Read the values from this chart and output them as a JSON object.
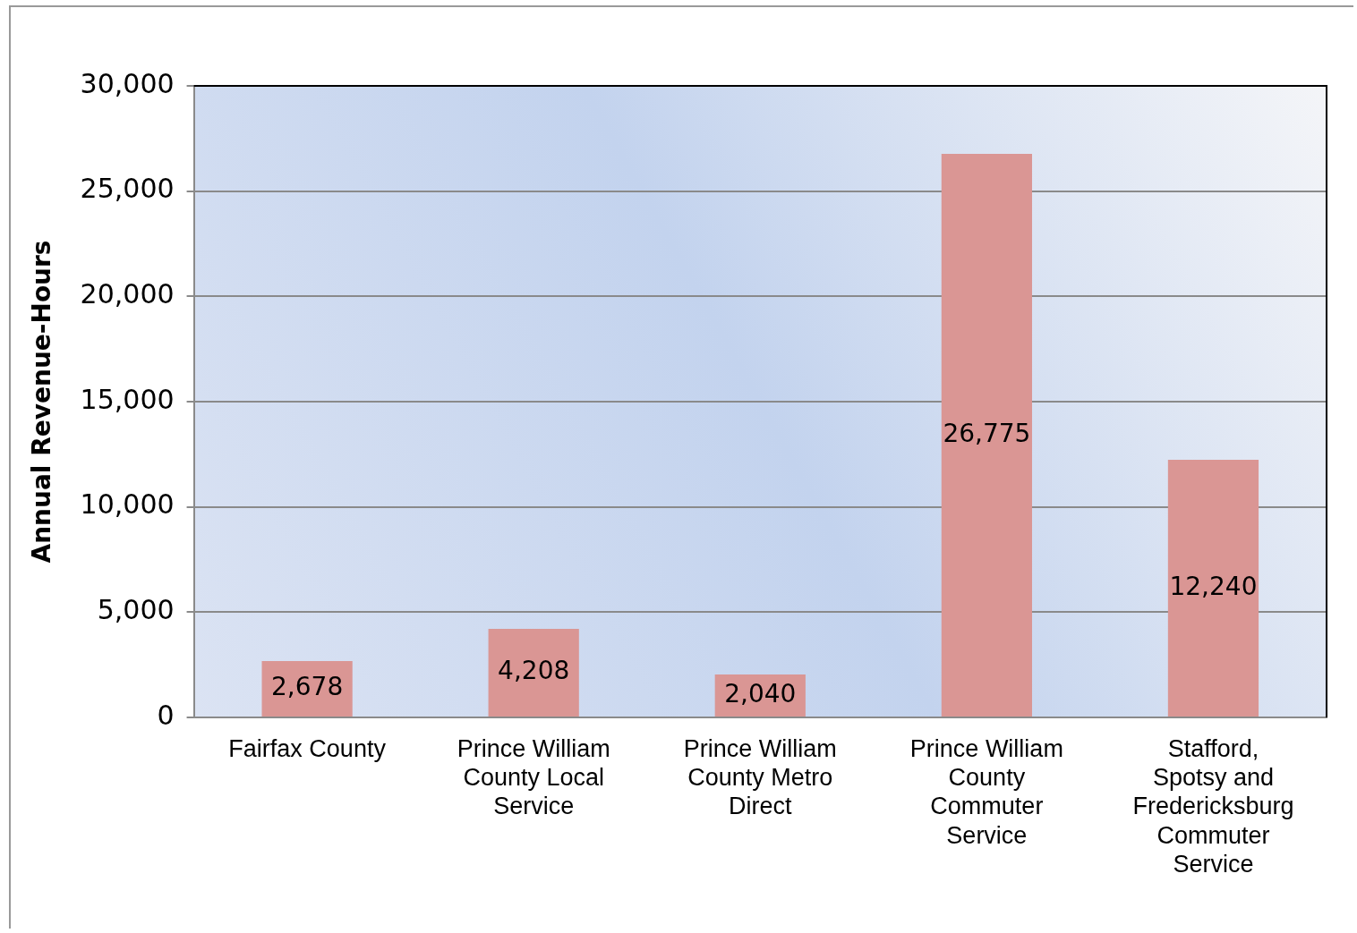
{
  "chart_data": {
    "type": "bar",
    "ylabel": "Annual Revenue-Hours",
    "categories": [
      "Fairfax County",
      "Prince William County Local Service",
      "Prince William County Metro Direct",
      "Prince William County Commuter Service",
      "Stafford, Spotsy and Fredericksburg Commuter Service"
    ],
    "values": [
      2678,
      4208,
      2040,
      26775,
      12240
    ],
    "color": "#da9694",
    "value_labels": [
      "2,678",
      "4,208",
      "2,040",
      "26,775",
      "12,240"
    ],
    "ylim": [
      0,
      30000
    ],
    "yticks": [
      {
        "value": 0,
        "label": "0"
      },
      {
        "value": 5000,
        "label": "5,000"
      },
      {
        "value": 10000,
        "label": "10,000"
      },
      {
        "value": 15000,
        "label": "15,000"
      },
      {
        "value": 20000,
        "label": "20,000"
      },
      {
        "value": 25000,
        "label": "25,000"
      },
      {
        "value": 30000,
        "label": "30,000"
      }
    ],
    "grid": "y"
  }
}
